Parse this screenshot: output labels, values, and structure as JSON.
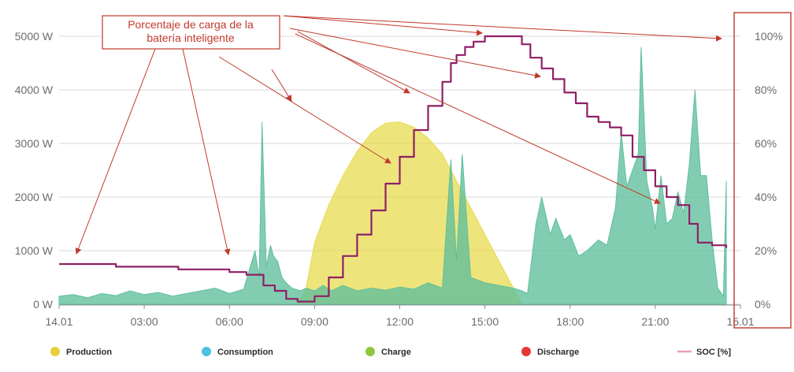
{
  "chart_data": {
    "type": "area",
    "x_ticks": [
      "14.01",
      "03:00",
      "06:00",
      "09:00",
      "12:00",
      "15:00",
      "18:00",
      "21:00",
      "15.01"
    ],
    "y_left": {
      "ticks": [
        "0 W",
        "1000 W",
        "2000 W",
        "3000 W",
        "4000 W",
        "5000 W"
      ],
      "ylim": [
        0,
        5000
      ]
    },
    "y_right": {
      "ticks": [
        "0%",
        "20%",
        "40%",
        "60%",
        "80%",
        "100%"
      ],
      "ylim": [
        0,
        100
      ]
    },
    "x_range_hours": [
      0,
      24
    ],
    "grid": true,
    "legend_position": "bottom",
    "legend": [
      {
        "label": "Production",
        "color": "#e8cf3a",
        "marker": "dot"
      },
      {
        "label": "Consumption",
        "color": "#4cc1e0",
        "marker": "dot"
      },
      {
        "label": "Charge",
        "color": "#8ec63f",
        "marker": "dot"
      },
      {
        "label": "Discharge",
        "color": "#e53935",
        "marker": "dot"
      },
      {
        "label": "SOC [%]",
        "color": "#e8a0b4",
        "marker": "line"
      }
    ],
    "annotation": {
      "lines": [
        "Porcentaje de carga de la",
        "batería inteligente"
      ],
      "color": "#c0392b"
    },
    "series": [
      {
        "name": "Production",
        "color": "#e8d94a",
        "x": [
          8.4,
          8.7,
          9.0,
          9.5,
          10.0,
          10.5,
          11.0,
          11.5,
          12.0,
          12.5,
          13.0,
          13.5,
          14.0,
          14.5,
          15.0,
          15.5,
          16.0,
          16.3
        ],
        "values": [
          0,
          300,
          1150,
          1850,
          2400,
          2850,
          3200,
          3380,
          3400,
          3300,
          3100,
          2800,
          2300,
          1800,
          1300,
          800,
          300,
          0
        ]
      },
      {
        "name": "Consumption",
        "color": "#5fbf9c",
        "x": [
          0,
          0.5,
          1,
          1.5,
          2,
          2.5,
          3,
          3.5,
          4,
          4.5,
          5,
          5.5,
          6,
          6.5,
          6.9,
          7.05,
          7.15,
          7.3,
          7.45,
          7.55,
          7.7,
          7.85,
          8.0,
          8.2,
          8.5,
          8.7,
          9.0,
          9.3,
          9.6,
          10.0,
          10.5,
          11.0,
          11.5,
          12.0,
          12.5,
          13.0,
          13.5,
          13.8,
          14.0,
          14.2,
          14.5,
          15.0,
          15.5,
          16.0,
          16.3,
          16.5,
          16.8,
          17.0,
          17.3,
          17.5,
          17.8,
          18.0,
          18.3,
          18.6,
          19.0,
          19.3,
          19.6,
          19.8,
          20.0,
          20.2,
          20.4,
          20.5,
          20.7,
          20.9,
          21.0,
          21.2,
          21.4,
          21.6,
          21.8,
          22.0,
          22.2,
          22.4,
          22.6,
          22.8,
          23.0,
          23.2,
          23.4,
          23.5
        ],
        "values": [
          150,
          180,
          120,
          200,
          160,
          250,
          180,
          220,
          150,
          200,
          250,
          300,
          200,
          280,
          1000,
          500,
          3400,
          700,
          1100,
          900,
          800,
          500,
          400,
          300,
          250,
          300,
          250,
          350,
          250,
          350,
          250,
          300,
          260,
          320,
          280,
          400,
          300,
          2700,
          800,
          2800,
          500,
          400,
          350,
          300,
          250,
          200,
          1500,
          2000,
          1300,
          1600,
          1200,
          1300,
          900,
          1000,
          1200,
          1100,
          1800,
          3200,
          2200,
          2500,
          2800,
          4800,
          2300,
          1800,
          1400,
          2400,
          1500,
          1600,
          2100,
          1700,
          2600,
          4000,
          2400,
          2400,
          1200,
          300,
          150,
          2300
        ]
      }
    ],
    "soc_series": {
      "name": "SOC [%]",
      "color": "#8e1f66",
      "x": [
        0,
        1.5,
        2.0,
        3.8,
        4.2,
        5.5,
        6.0,
        6.6,
        7.2,
        7.6,
        8.0,
        8.4,
        8.8,
        9.0,
        9.5,
        10.0,
        10.5,
        11.0,
        11.5,
        12.0,
        12.5,
        13.0,
        13.5,
        13.8,
        14.0,
        14.3,
        14.6,
        15.0,
        15.5,
        16.0,
        16.3,
        16.6,
        17.0,
        17.4,
        17.8,
        18.2,
        18.6,
        19.0,
        19.4,
        19.8,
        20.2,
        20.6,
        21.0,
        21.4,
        21.8,
        22.2,
        22.5,
        23.0,
        23.5
      ],
      "values": [
        15,
        15,
        14,
        14,
        13,
        13,
        12,
        11,
        7,
        5,
        2,
        1,
        1,
        3,
        10,
        18,
        26,
        35,
        45,
        55,
        65,
        74,
        83,
        90,
        93,
        96,
        98,
        100,
        100,
        100,
        97,
        92,
        88,
        84,
        79,
        75,
        70,
        68,
        66,
        63,
        55,
        50,
        44,
        40,
        37,
        30,
        23,
        22,
        21
      ]
    }
  }
}
